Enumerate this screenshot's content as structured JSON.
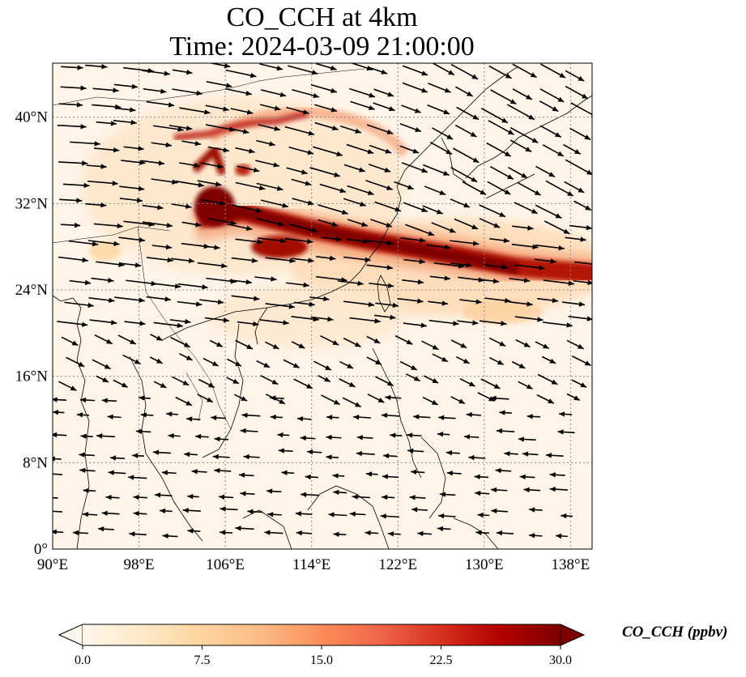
{
  "figure": {
    "title_line1": "CO_CCH at 4km",
    "title_line2": "Time: 2024-03-09 21:00:00"
  },
  "map": {
    "extent": {
      "lon_min": 90,
      "lon_max": 140,
      "lat_min": 0,
      "lat_max": 45
    },
    "gridlines": "dotted grey",
    "colormap": "OrRd",
    "x_ticks": [
      {
        "value": 90,
        "label": "90°E"
      },
      {
        "value": 98,
        "label": "98°E"
      },
      {
        "value": 106,
        "label": "106°E"
      },
      {
        "value": 114,
        "label": "114°E"
      },
      {
        "value": 122,
        "label": "122°E"
      },
      {
        "value": 130,
        "label": "130°E"
      },
      {
        "value": 138,
        "label": "138°E"
      }
    ],
    "y_ticks": [
      {
        "value": 0,
        "label": "0°"
      },
      {
        "value": 8,
        "label": "8°N"
      },
      {
        "value": 16,
        "label": "16°N"
      },
      {
        "value": 24,
        "label": "24°N"
      },
      {
        "value": 32,
        "label": "32°N"
      },
      {
        "value": 40,
        "label": "40°N"
      }
    ],
    "plume_description": "High CO band from Sichuan Basin east across the East China Sea to ~140°E near 25-30°N",
    "wind_vectors": "quiver arrows, predominantly westerly north of 20°N, easterly/northeasterly south of 16°N"
  },
  "colorbar": {
    "label": "CO_CCH (ppbv)",
    "min": 0.0,
    "max": 30.0,
    "extend": "both",
    "ticks": [
      "0.0",
      "7.5",
      "15.0",
      "22.5",
      "30.0"
    ],
    "colors": [
      "#fff7ec",
      "#fee8c8",
      "#fdd49e",
      "#fdbb84",
      "#fc8d59",
      "#ef6548",
      "#d7301f",
      "#b30000",
      "#7f0000"
    ]
  }
}
